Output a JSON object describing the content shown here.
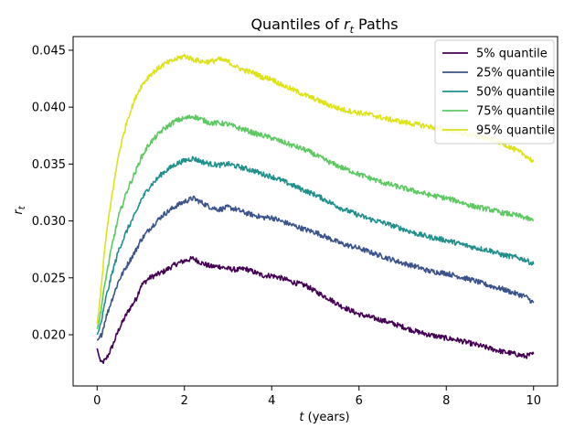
{
  "chart_data": {
    "type": "line",
    "title_prefix": "Quantiles of ",
    "title_var": "r",
    "title_sub": "t",
    "title_suffix": " Paths",
    "xlabel_var": "t",
    "xlabel_suffix": " (years)",
    "ylabel_var": "r",
    "ylabel_sub": "t",
    "xlim": [
      -0.55,
      10.55
    ],
    "ylim": [
      0.0155,
      0.0462
    ],
    "xticks": [
      0,
      2,
      4,
      6,
      8,
      10
    ],
    "xtick_labels": [
      "0",
      "2",
      "4",
      "6",
      "8",
      "10"
    ],
    "yticks": [
      0.02,
      0.025,
      0.03,
      0.035,
      0.04,
      0.045
    ],
    "ytick_labels": [
      "0.020",
      "0.025",
      "0.030",
      "0.035",
      "0.040",
      "0.045"
    ],
    "grid": false,
    "legend_position": "upper right",
    "series": [
      {
        "name": "5% quantile",
        "color": "#440154",
        "x": [
          0,
          0.05,
          0.1,
          0.2,
          0.35,
          0.5,
          0.7,
          0.9,
          1.0,
          1.2,
          1.5,
          1.8,
          2.0,
          2.2,
          2.4,
          2.6,
          2.8,
          3.0,
          3.2,
          3.4,
          3.6,
          3.8,
          4.0,
          4.2,
          4.5,
          4.8,
          5.0,
          5.3,
          5.6,
          6.0,
          6.3,
          6.6,
          7.0,
          7.3,
          7.6,
          8.0,
          8.3,
          8.6,
          9.0,
          9.3,
          9.6,
          9.8,
          10.0
        ],
        "y": [
          0.0188,
          0.018,
          0.0175,
          0.0178,
          0.019,
          0.0205,
          0.022,
          0.0232,
          0.0243,
          0.025,
          0.0255,
          0.0262,
          0.0265,
          0.0267,
          0.0263,
          0.026,
          0.026,
          0.0258,
          0.0257,
          0.0258,
          0.0255,
          0.0252,
          0.0252,
          0.025,
          0.0246,
          0.0243,
          0.0238,
          0.0232,
          0.0225,
          0.0218,
          0.0215,
          0.0212,
          0.0207,
          0.0203,
          0.02,
          0.0197,
          0.0195,
          0.0192,
          0.0188,
          0.0185,
          0.0183,
          0.0181,
          0.0183
        ]
      },
      {
        "name": "25% quantile",
        "color": "#3b528b",
        "x": [
          0,
          0.05,
          0.1,
          0.2,
          0.35,
          0.5,
          0.7,
          0.9,
          1.0,
          1.2,
          1.5,
          1.8,
          2.0,
          2.2,
          2.4,
          2.6,
          2.8,
          3.0,
          3.2,
          3.4,
          3.6,
          3.8,
          4.0,
          4.2,
          4.5,
          4.8,
          5.0,
          5.3,
          5.6,
          6.0,
          6.3,
          6.6,
          7.0,
          7.3,
          7.6,
          8.0,
          8.3,
          8.6,
          9.0,
          9.3,
          9.6,
          9.8,
          10.0
        ],
        "y": [
          0.0195,
          0.0197,
          0.02,
          0.0215,
          0.0232,
          0.0248,
          0.0262,
          0.0275,
          0.0283,
          0.0293,
          0.0305,
          0.0313,
          0.0317,
          0.032,
          0.0316,
          0.0312,
          0.031,
          0.0312,
          0.031,
          0.0307,
          0.0305,
          0.0303,
          0.0303,
          0.03,
          0.0296,
          0.0292,
          0.029,
          0.0285,
          0.028,
          0.0276,
          0.0272,
          0.0268,
          0.0263,
          0.026,
          0.0256,
          0.0254,
          0.0251,
          0.0248,
          0.0243,
          0.024,
          0.0236,
          0.0234,
          0.0228
        ]
      },
      {
        "name": "50% quantile",
        "color": "#21908d",
        "x": [
          0,
          0.05,
          0.1,
          0.2,
          0.35,
          0.5,
          0.7,
          0.9,
          1.0,
          1.2,
          1.5,
          1.8,
          2.0,
          2.2,
          2.4,
          2.6,
          2.8,
          3.0,
          3.2,
          3.4,
          3.6,
          3.8,
          4.0,
          4.2,
          4.5,
          4.8,
          5.0,
          5.3,
          5.6,
          6.0,
          6.3,
          6.6,
          7.0,
          7.3,
          7.6,
          8.0,
          8.3,
          8.6,
          9.0,
          9.3,
          9.6,
          9.8,
          10.0
        ],
        "y": [
          0.02,
          0.0205,
          0.0212,
          0.0232,
          0.0255,
          0.0275,
          0.0293,
          0.0308,
          0.0318,
          0.033,
          0.0342,
          0.035,
          0.0353,
          0.0355,
          0.0352,
          0.035,
          0.0349,
          0.035,
          0.0348,
          0.0346,
          0.0344,
          0.0341,
          0.0339,
          0.0336,
          0.0331,
          0.0326,
          0.0323,
          0.0317,
          0.0311,
          0.0305,
          0.0301,
          0.0298,
          0.0293,
          0.0289,
          0.0286,
          0.0283,
          0.028,
          0.0277,
          0.0274,
          0.027,
          0.0268,
          0.0266,
          0.0262
        ]
      },
      {
        "name": "75% quantile",
        "color": "#5ec962",
        "x": [
          0,
          0.05,
          0.1,
          0.2,
          0.35,
          0.5,
          0.7,
          0.9,
          1.0,
          1.2,
          1.5,
          1.8,
          2.0,
          2.2,
          2.4,
          2.6,
          2.8,
          3.0,
          3.2,
          3.4,
          3.6,
          3.8,
          4.0,
          4.2,
          4.5,
          4.8,
          5.0,
          5.3,
          5.6,
          6.0,
          6.3,
          6.6,
          7.0,
          7.3,
          7.6,
          8.0,
          8.3,
          8.6,
          9.0,
          9.3,
          9.6,
          9.8,
          10.0
        ],
        "y": [
          0.0205,
          0.0213,
          0.0225,
          0.025,
          0.028,
          0.0305,
          0.0328,
          0.0345,
          0.0355,
          0.0368,
          0.038,
          0.0388,
          0.039,
          0.0392,
          0.0389,
          0.0386,
          0.0386,
          0.0385,
          0.0382,
          0.038,
          0.0377,
          0.0375,
          0.0373,
          0.037,
          0.0366,
          0.0362,
          0.0358,
          0.0352,
          0.0347,
          0.0341,
          0.0337,
          0.0333,
          0.0329,
          0.0326,
          0.0323,
          0.032,
          0.0317,
          0.0313,
          0.031,
          0.0307,
          0.0305,
          0.0303,
          0.03
        ]
      },
      {
        "name": "95% quantile",
        "color": "#dde318",
        "x": [
          0,
          0.05,
          0.1,
          0.2,
          0.35,
          0.5,
          0.7,
          0.9,
          1.0,
          1.2,
          1.5,
          1.8,
          2.0,
          2.2,
          2.4,
          2.6,
          2.8,
          3.0,
          3.2,
          3.4,
          3.6,
          3.8,
          4.0,
          4.2,
          4.5,
          4.8,
          5.0,
          5.3,
          5.6,
          6.0,
          6.3,
          6.6,
          7.0,
          7.3,
          7.6,
          8.0,
          8.3,
          8.6,
          9.0,
          9.3,
          9.6,
          9.8,
          10.0
        ],
        "y": [
          0.021,
          0.0225,
          0.0245,
          0.0285,
          0.0325,
          0.036,
          0.039,
          0.041,
          0.0418,
          0.0428,
          0.0437,
          0.0442,
          0.0445,
          0.0442,
          0.044,
          0.044,
          0.0442,
          0.044,
          0.0435,
          0.0432,
          0.043,
          0.0426,
          0.0425,
          0.042,
          0.0415,
          0.041,
          0.0407,
          0.0402,
          0.0398,
          0.0395,
          0.0393,
          0.039,
          0.0387,
          0.0385,
          0.0383,
          0.038,
          0.0378,
          0.0375,
          0.0372,
          0.0368,
          0.0362,
          0.0358,
          0.0352
        ]
      }
    ]
  }
}
